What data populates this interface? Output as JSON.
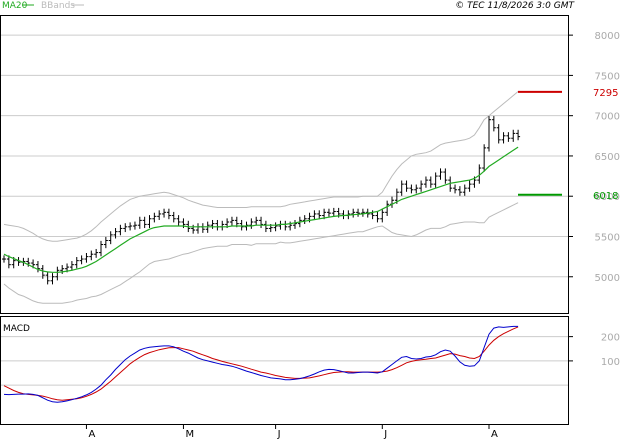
{
  "header": {
    "ma_label": "MA20",
    "bb_label": "BBands",
    "copyright": "© TEC 11/8/2026 3:0 GMT"
  },
  "colors": {
    "price": "#000000",
    "ma": "#22aa22",
    "bbands": "#bbbbbb",
    "resistance": "#cc0000",
    "support": "#009900",
    "macd_line": "#0000cc",
    "signal_line": "#cc0000",
    "grid": "#cccccc",
    "panel_border": "#000000"
  },
  "chart_data": [
    {
      "type": "line",
      "subtype": "ohlc-price",
      "y_ticks": [
        5000,
        5500,
        6000,
        6500,
        7000,
        7500,
        8000
      ],
      "ylim": [
        4550,
        8250
      ],
      "month_labels": [
        "A",
        "M",
        "J",
        "J",
        "A"
      ],
      "month_x_index": [
        17,
        37,
        56,
        78,
        100
      ],
      "levels": [
        {
          "name": "resistance",
          "value": 7295,
          "label": "7295"
        },
        {
          "name": "support",
          "value": 6018,
          "label": "6018"
        }
      ],
      "close": [
        5220,
        5150,
        5200,
        5180,
        5190,
        5170,
        5150,
        5100,
        5020,
        4950,
        5000,
        5080,
        5100,
        5120,
        5150,
        5200,
        5220,
        5250,
        5280,
        5300,
        5400,
        5450,
        5520,
        5560,
        5600,
        5620,
        5630,
        5640,
        5700,
        5650,
        5720,
        5750,
        5780,
        5800,
        5760,
        5720,
        5680,
        5650,
        5600,
        5580,
        5620,
        5590,
        5640,
        5660,
        5620,
        5650,
        5680,
        5700,
        5660,
        5620,
        5640,
        5680,
        5700,
        5650,
        5600,
        5610,
        5630,
        5650,
        5620,
        5640,
        5660,
        5700,
        5720,
        5750,
        5780,
        5760,
        5800,
        5790,
        5810,
        5780,
        5760,
        5780,
        5800,
        5790,
        5800,
        5780,
        5760,
        5720,
        5800,
        5900,
        5950,
        6050,
        6150,
        6100,
        6080,
        6100,
        6150,
        6200,
        6150,
        6250,
        6300,
        6200,
        6100,
        6080,
        6050,
        6100,
        6150,
        6200,
        6350,
        6600,
        6950,
        6850,
        6700,
        6750,
        6720,
        6780,
        6740
      ],
      "ma20": [
        5280,
        5250,
        5225,
        5200,
        5180,
        5150,
        5120,
        5090,
        5070,
        5060,
        5055,
        5055,
        5060,
        5070,
        5080,
        5095,
        5110,
        5130,
        5160,
        5190,
        5230,
        5270,
        5310,
        5350,
        5390,
        5430,
        5470,
        5500,
        5530,
        5560,
        5590,
        5610,
        5620,
        5630,
        5630,
        5630,
        5630,
        5630,
        5620,
        5620,
        5620,
        5620,
        5620,
        5620,
        5620,
        5620,
        5620,
        5630,
        5630,
        5630,
        5630,
        5630,
        5640,
        5640,
        5640,
        5640,
        5640,
        5650,
        5650,
        5660,
        5670,
        5680,
        5690,
        5700,
        5710,
        5720,
        5730,
        5740,
        5750,
        5755,
        5760,
        5765,
        5770,
        5775,
        5780,
        5790,
        5800,
        5810,
        5840,
        5870,
        5900,
        5930,
        5960,
        5980,
        6000,
        6020,
        6040,
        6060,
        6080,
        6100,
        6120,
        6140,
        6160,
        6170,
        6180,
        6190,
        6200,
        6220,
        6260,
        6310,
        6370,
        6410,
        6450,
        6490,
        6530,
        6570,
        6610
      ],
      "bb_upper": [
        5650,
        5640,
        5630,
        5620,
        5600,
        5570,
        5540,
        5500,
        5470,
        5450,
        5440,
        5440,
        5450,
        5460,
        5470,
        5480,
        5500,
        5530,
        5570,
        5620,
        5680,
        5730,
        5780,
        5830,
        5880,
        5920,
        5960,
        5980,
        6000,
        6010,
        6020,
        6030,
        6040,
        6050,
        6040,
        6020,
        6000,
        5980,
        5950,
        5930,
        5910,
        5890,
        5880,
        5870,
        5860,
        5860,
        5860,
        5860,
        5860,
        5860,
        5860,
        5870,
        5870,
        5870,
        5870,
        5870,
        5870,
        5870,
        5880,
        5900,
        5910,
        5920,
        5930,
        5940,
        5950,
        5960,
        5970,
        5980,
        5990,
        5990,
        5990,
        5990,
        5990,
        5990,
        6000,
        6000,
        6000,
        6000,
        6050,
        6150,
        6250,
        6330,
        6400,
        6450,
        6500,
        6520,
        6530,
        6540,
        6560,
        6600,
        6640,
        6660,
        6670,
        6680,
        6690,
        6700,
        6720,
        6760,
        6850,
        6950,
        7000,
        7050,
        7100,
        7150,
        7200,
        7250,
        7300
      ],
      "bb_lower": [
        4910,
        4860,
        4820,
        4780,
        4760,
        4730,
        4700,
        4680,
        4670,
        4670,
        4670,
        4670,
        4670,
        4680,
        4690,
        4710,
        4720,
        4730,
        4750,
        4760,
        4780,
        4810,
        4840,
        4870,
        4900,
        4940,
        4980,
        5020,
        5060,
        5110,
        5160,
        5190,
        5200,
        5210,
        5220,
        5240,
        5260,
        5280,
        5290,
        5310,
        5330,
        5350,
        5360,
        5370,
        5380,
        5380,
        5380,
        5400,
        5400,
        5400,
        5400,
        5390,
        5410,
        5410,
        5410,
        5410,
        5410,
        5430,
        5420,
        5420,
        5430,
        5440,
        5450,
        5460,
        5470,
        5480,
        5490,
        5500,
        5510,
        5520,
        5530,
        5540,
        5550,
        5560,
        5560,
        5580,
        5600,
        5620,
        5630,
        5590,
        5550,
        5530,
        5520,
        5510,
        5500,
        5520,
        5550,
        5580,
        5600,
        5600,
        5600,
        5620,
        5650,
        5660,
        5670,
        5680,
        5680,
        5680,
        5670,
        5670,
        5740,
        5770,
        5800,
        5830,
        5860,
        5890,
        5920
      ]
    },
    {
      "type": "line",
      "title": "MACD",
      "y_ticks": [
        100,
        200
      ],
      "ylim": [
        -160,
        285
      ],
      "series": [
        {
          "name": "macd",
          "values": [
            -38,
            -39,
            -38,
            -37,
            -37,
            -36,
            -38,
            -42,
            -52,
            -62,
            -68,
            -70,
            -68,
            -65,
            -60,
            -54,
            -48,
            -40,
            -30,
            -16,
            0,
            22,
            42,
            65,
            85,
            105,
            120,
            132,
            145,
            152,
            156,
            158,
            160,
            162,
            162,
            158,
            150,
            140,
            132,
            122,
            112,
            105,
            100,
            95,
            90,
            85,
            82,
            78,
            72,
            65,
            58,
            52,
            46,
            40,
            35,
            30,
            28,
            26,
            22,
            22,
            24,
            27,
            32,
            38,
            46,
            55,
            62,
            65,
            64,
            60,
            55,
            50,
            50,
            52,
            54,
            54,
            52,
            50,
            55,
            70,
            85,
            100,
            115,
            118,
            110,
            108,
            110,
            116,
            118,
            125,
            138,
            145,
            140,
            120,
            96,
            82,
            78,
            80,
            100,
            155,
            210,
            235,
            240,
            238,
            240,
            242,
            242
          ]
        },
        {
          "name": "signal",
          "values": [
            -2,
            -12,
            -22,
            -30,
            -35,
            -38,
            -40,
            -42,
            -45,
            -50,
            -56,
            -60,
            -62,
            -60,
            -58,
            -56,
            -52,
            -46,
            -38,
            -28,
            -16,
            0,
            16,
            34,
            52,
            70,
            88,
            102,
            115,
            126,
            134,
            140,
            146,
            150,
            154,
            155,
            155,
            150,
            145,
            140,
            132,
            125,
            118,
            110,
            104,
            98,
            93,
            88,
            83,
            78,
            72,
            66,
            60,
            54,
            50,
            45,
            40,
            36,
            32,
            30,
            28,
            28,
            29,
            30,
            34,
            38,
            43,
            48,
            52,
            54,
            55,
            55,
            54,
            54,
            54,
            54,
            54,
            54,
            55,
            58,
            64,
            72,
            82,
            92,
            98,
            102,
            105,
            107,
            110,
            112,
            118,
            124,
            130,
            128,
            122,
            118,
            112,
            110,
            118,
            140,
            165,
            185,
            200,
            212,
            222,
            232,
            240
          ]
        }
      ]
    }
  ]
}
